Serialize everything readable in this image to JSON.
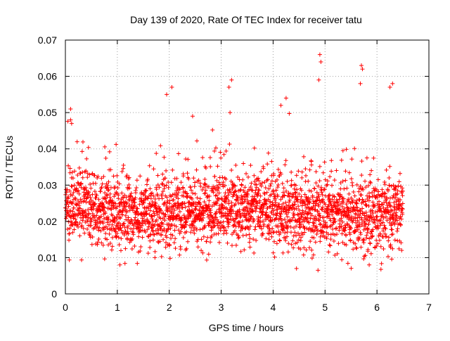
{
  "chart_data": {
    "type": "scatter",
    "title": "Day 139 of 2020, Rate Of TEC Index for receiver tatu",
    "xlabel": "GPS time / hours",
    "ylabel": "ROTI / TECUs",
    "xlim": [
      0,
      7
    ],
    "ylim": [
      0,
      0.07
    ],
    "x_ticks": [
      0,
      1,
      2,
      3,
      4,
      5,
      6,
      7
    ],
    "y_ticks": [
      0,
      0.01,
      0.02,
      0.03,
      0.04,
      0.05,
      0.06,
      0.07
    ],
    "x_tick_labels": [
      "0",
      "1",
      "2",
      "3",
      "4",
      "5",
      "6",
      "7"
    ],
    "y_tick_labels": [
      "0",
      "0.01",
      "0.02",
      "0.03",
      "0.04",
      "0.05",
      "0.06",
      "0.07"
    ],
    "grid": true,
    "marker": "+",
    "marker_color": "#ff0000",
    "series": [
      {
        "name": "ROTI",
        "x_range": [
          0.0,
          6.5
        ],
        "typical_range": [
          0.01,
          0.035
        ],
        "density_profile_x": [
          0.0,
          0.5,
          1.0,
          1.5,
          2.0,
          2.5,
          3.0,
          3.5,
          4.0,
          4.5,
          5.0,
          5.5,
          6.0,
          6.5
        ],
        "median_profile": [
          0.024,
          0.024,
          0.021,
          0.022,
          0.022,
          0.023,
          0.024,
          0.023,
          0.024,
          0.022,
          0.023,
          0.021,
          0.022,
          0.023
        ],
        "spread_profile": [
          0.006,
          0.006,
          0.007,
          0.006,
          0.006,
          0.006,
          0.006,
          0.006,
          0.006,
          0.007,
          0.006,
          0.006,
          0.007,
          0.006
        ],
        "notable_points": [
          {
            "x": 0.1,
            "y": 0.051
          },
          {
            "x": 0.1,
            "y": 0.048
          },
          {
            "x": 0.12,
            "y": 0.047
          },
          {
            "x": 1.95,
            "y": 0.055
          },
          {
            "x": 2.05,
            "y": 0.057
          },
          {
            "x": 2.45,
            "y": 0.049
          },
          {
            "x": 3.15,
            "y": 0.057
          },
          {
            "x": 3.2,
            "y": 0.059
          },
          {
            "x": 4.15,
            "y": 0.052
          },
          {
            "x": 4.25,
            "y": 0.054
          },
          {
            "x": 4.9,
            "y": 0.066
          },
          {
            "x": 4.92,
            "y": 0.064
          },
          {
            "x": 4.88,
            "y": 0.059
          },
          {
            "x": 5.7,
            "y": 0.063
          },
          {
            "x": 5.72,
            "y": 0.062
          },
          {
            "x": 5.68,
            "y": 0.058
          },
          {
            "x": 6.25,
            "y": 0.057
          },
          {
            "x": 6.3,
            "y": 0.058
          },
          {
            "x": 1.05,
            "y": 0.008
          },
          {
            "x": 4.45,
            "y": 0.007
          },
          {
            "x": 5.85,
            "y": 0.008
          }
        ],
        "points_count": 2600
      }
    ]
  }
}
